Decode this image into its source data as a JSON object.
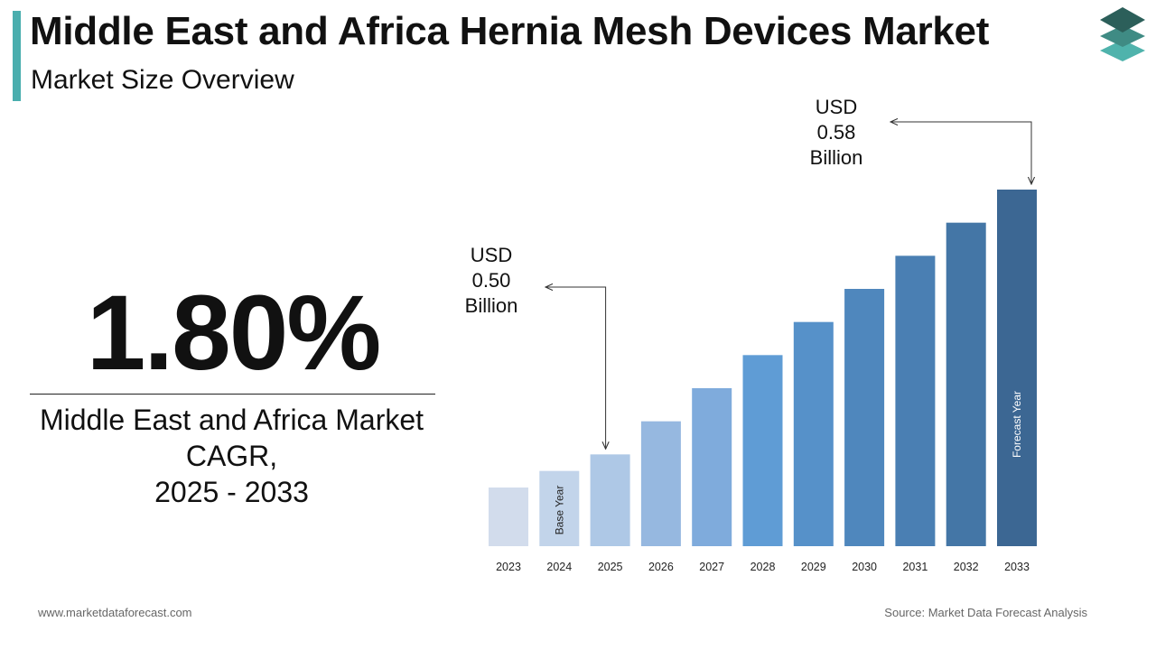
{
  "header": {
    "title": "Middle East and Africa Hernia Mesh Devices Market",
    "subtitle": "Market Size Overview"
  },
  "colors": {
    "accent": "#4aaeae",
    "logo_top": "#2c5f5a",
    "logo_middle": "#3f8b84",
    "logo_bottom": "#4fb3ac"
  },
  "kpi": {
    "value": "1.80%",
    "label_line1": "Middle East and Africa Market",
    "label_line2": "CAGR,",
    "label_line3": "2025 - 2033"
  },
  "chart_data": {
    "type": "bar",
    "categories": [
      "2023",
      "2024",
      "2025",
      "2026",
      "2027",
      "2028",
      "2029",
      "2030",
      "2031",
      "2032",
      "2033"
    ],
    "values": [
      0.49,
      0.495,
      0.5,
      0.51,
      0.52,
      0.53,
      0.54,
      0.55,
      0.56,
      0.57,
      0.58
    ],
    "colors": [
      "#d2dcec",
      "#c2d4ea",
      "#aec8e6",
      "#96b8e0",
      "#7fabdc",
      "#5f9cd5",
      "#5691c9",
      "#4f87bd",
      "#4a7fb3",
      "#4476a6",
      "#3c6793"
    ],
    "bar_labels": {
      "2024": "Base Year",
      "2033": "Forecast Year"
    },
    "callouts": [
      {
        "category": "2025",
        "line1": "USD",
        "line2": "0.50",
        "line3": "Billion"
      },
      {
        "category": "2033",
        "line1": "USD",
        "line2": "0.58",
        "line3": "Billion"
      }
    ]
  },
  "footer": {
    "website": "www.marketdataforecast.com",
    "source": "Source: Market Data Forecast Analysis"
  }
}
